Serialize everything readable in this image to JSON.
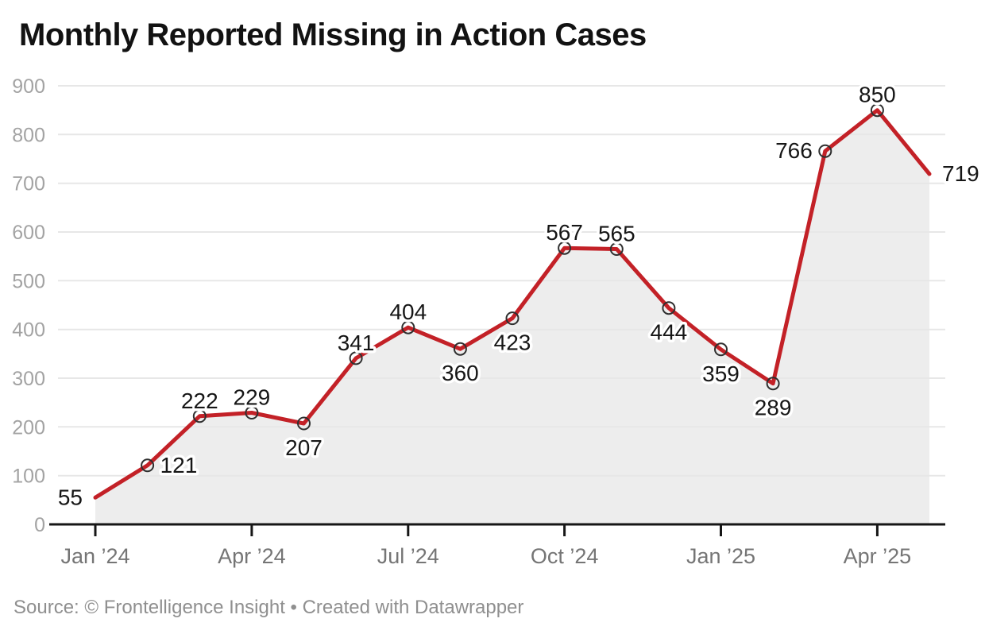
{
  "header": {
    "title": "Monthly Reported Missing in Action Cases"
  },
  "footer": {
    "source": "Source: © Frontelligence Insight • Created with Datawrapper"
  },
  "chart_data": {
    "type": "line",
    "title": "Monthly Reported Missing in Action Cases",
    "x": [
      "Jan 2024",
      "Feb 2024",
      "Mar 2024",
      "Apr 2024",
      "May 2024",
      "Jun 2024",
      "Jul 2024",
      "Aug 2024",
      "Sep 2024",
      "Oct 2024",
      "Nov 2024",
      "Dec 2024",
      "Jan 2025",
      "Feb 2025",
      "Mar 2025",
      "Apr 2025",
      "May 2025"
    ],
    "values": [
      55,
      121,
      222,
      229,
      207,
      341,
      404,
      360,
      423,
      567,
      565,
      444,
      359,
      289,
      766,
      850,
      719
    ],
    "x_ticks": [
      {
        "index": 0,
        "label": "Jan ’24"
      },
      {
        "index": 3,
        "label": "Apr ’24"
      },
      {
        "index": 6,
        "label": "Jul ’24"
      },
      {
        "index": 9,
        "label": "Oct ’24"
      },
      {
        "index": 12,
        "label": "Jan ’25"
      },
      {
        "index": 15,
        "label": "Apr ’25"
      }
    ],
    "y_ticks": [
      0,
      100,
      200,
      300,
      400,
      500,
      600,
      700,
      800,
      900
    ],
    "ylim": [
      0,
      900
    ],
    "grid": true,
    "area_fill": true,
    "legend": "none",
    "marker_point_indices": [
      1,
      2,
      3,
      4,
      5,
      6,
      7,
      8,
      9,
      10,
      11,
      12,
      13,
      14,
      15
    ],
    "label_placement": [
      "left",
      "right",
      "above",
      "above",
      "below",
      "above",
      "above",
      "below",
      "below",
      "above",
      "above",
      "below",
      "below",
      "below",
      "left",
      "above",
      "right"
    ],
    "colors": {
      "line": "#c32127",
      "area": "#ededed",
      "grid": "#e7e7e7",
      "axis": "#161616",
      "marker_stroke": "#2f2f2f",
      "data_label": "#161616",
      "y_tick_label": "#a3a3a3",
      "x_tick_label": "#757575",
      "title": "#121212",
      "source": "#8f8f8f"
    }
  }
}
